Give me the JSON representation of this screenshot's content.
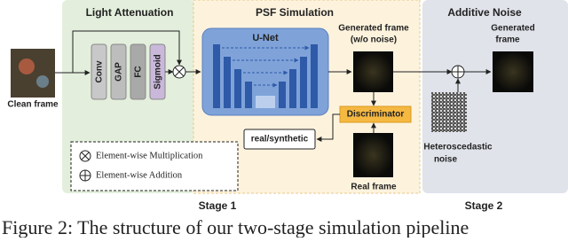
{
  "panels": [
    {
      "title": "Light Attenuation"
    },
    {
      "title": "PSF Simulation"
    },
    {
      "title": "Additive Noise"
    }
  ],
  "clean_frame": "Clean frame",
  "blocks": [
    "Conv",
    "GAP",
    "FC",
    "Sigmoid"
  ],
  "unet": "U-Net",
  "generated_wo_noise": [
    "Generated frame",
    "(w/o noise)"
  ],
  "discriminator": "Discriminator",
  "real_synthetic": "real/synthetic",
  "real_frame": "Real frame",
  "noise": [
    "Heteroscedastic",
    "noise"
  ],
  "generated_frame": [
    "Generated",
    "frame"
  ],
  "legend": [
    "Element-wise Multiplication",
    "Element-wise Addition"
  ],
  "stages": [
    "Stage 1",
    "Stage 2"
  ],
  "caption": "Figure 2: The structure of our two-stage simulation pipeline"
}
